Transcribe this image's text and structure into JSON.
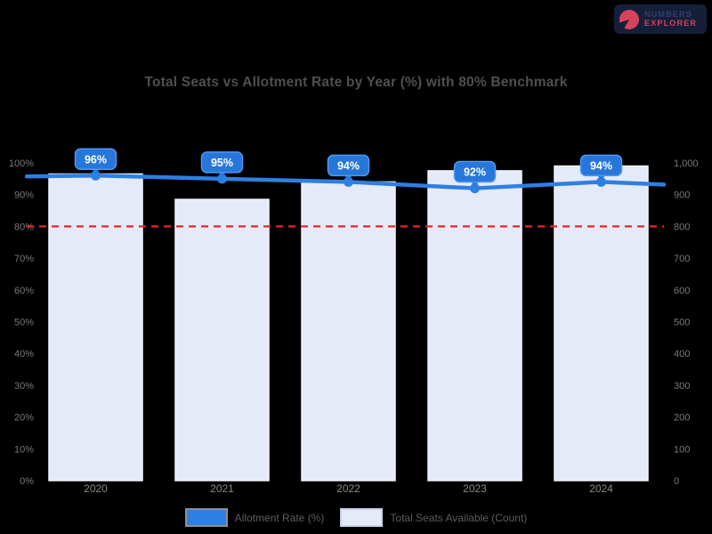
{
  "page": {
    "background": "#000000"
  },
  "logo": {
    "line1": "NUMBERS",
    "line2": "EXPLORER",
    "bg": "#161f3a",
    "line1_color": "#2e3f70",
    "line2_color": "#d83f58",
    "icon": "pie-chart-icon"
  },
  "chart_data": {
    "type": "combo-bar-line",
    "title": "Total Seats vs Allotment Rate by Year (%) with 80% Benchmark",
    "title_color": "#4f4f4f",
    "categories": [
      "2020",
      "2021",
      "2022",
      "2023",
      "2024"
    ],
    "series": [
      {
        "name": "Allotment Rate (%)",
        "type": "line",
        "axis": "left",
        "color": "#2e7fe3",
        "values": [
          96,
          95,
          94,
          92,
          94
        ],
        "point_labels": [
          "96%",
          "95%",
          "94%",
          "92%",
          "94%"
        ],
        "badge_fill": "#2776d9",
        "badge_border": "#4f97f2",
        "badge_text_color": "#ffffff",
        "legend_swatch": "#2e7fe3",
        "legend_swatch_border": "#8f8f8f"
      },
      {
        "name": "Total Seats Available (Count)",
        "type": "bar",
        "axis": "right",
        "fill": "#e5eaf9",
        "border": "#f2f4fc",
        "values": [
          965,
          885,
          940,
          975,
          990
        ],
        "legend_swatch": "#e5eaf9",
        "legend_swatch_border": "#c9d1ea"
      }
    ],
    "left_axis": {
      "min": 0,
      "max": 100,
      "step": 10,
      "tick_labels": [
        "100%",
        "90%",
        "80%",
        "70%",
        "60%",
        "50%",
        "40%",
        "30%",
        "20%",
        "10%",
        "0%"
      ],
      "color": "#787878"
    },
    "right_axis": {
      "min": 0,
      "max": 1000,
      "step": 100,
      "tick_labels": [
        "1,000",
        "900",
        "800",
        "700",
        "600",
        "500",
        "400",
        "300",
        "200",
        "100",
        "0"
      ],
      "color": "#787878"
    },
    "x_axis": {
      "color": "#8a8a8a"
    },
    "threshold": {
      "value": 80,
      "color": "#ee2329",
      "style": "dashed"
    },
    "legend_position": "bottom",
    "grid": "off"
  }
}
